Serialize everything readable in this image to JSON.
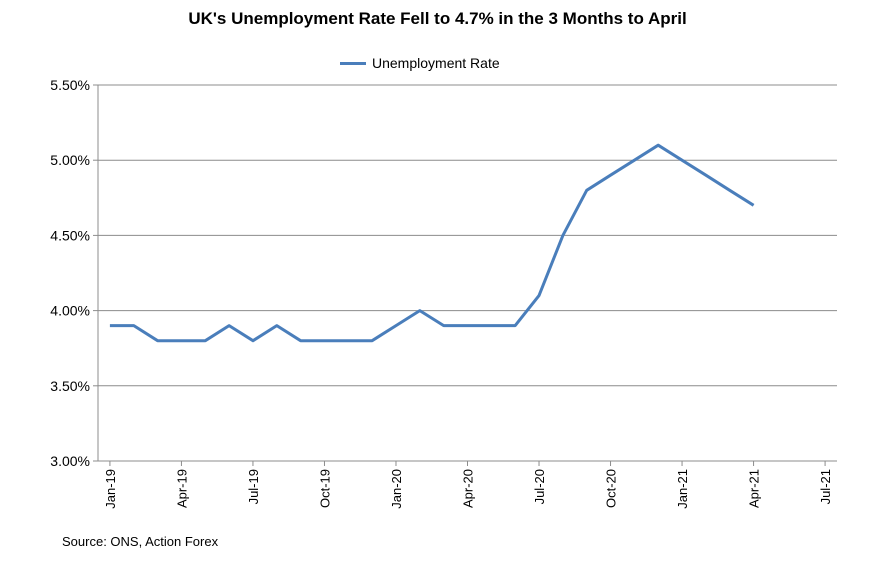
{
  "chart_data": {
    "type": "line",
    "title": "UK's Unemployment Rate Fell to 4.7% in the 3 Months to April",
    "series": [
      {
        "name": "Unemployment Rate",
        "color": "#4a7ebb",
        "x": [
          "Jan-19",
          "Feb-19",
          "Mar-19",
          "Apr-19",
          "May-19",
          "Jun-19",
          "Jul-19",
          "Aug-19",
          "Sep-19",
          "Oct-19",
          "Nov-19",
          "Dec-19",
          "Jan-20",
          "Feb-20",
          "Mar-20",
          "Apr-20",
          "May-20",
          "Jun-20",
          "Jul-20",
          "Aug-20",
          "Sep-20",
          "Oct-20",
          "Nov-20",
          "Dec-20",
          "Jan-21",
          "Feb-21",
          "Mar-21",
          "Apr-21"
        ],
        "values": [
          3.9,
          3.9,
          3.8,
          3.8,
          3.8,
          3.9,
          3.8,
          3.9,
          3.8,
          3.8,
          3.8,
          3.8,
          3.9,
          4.0,
          3.9,
          3.9,
          3.9,
          3.9,
          4.1,
          4.5,
          4.8,
          4.9,
          5.0,
          5.1,
          5.0,
          4.9,
          4.8,
          4.7
        ]
      }
    ],
    "x_ticks": [
      "Jan-19",
      "Apr-19",
      "Jul-19",
      "Oct-19",
      "Jan-20",
      "Apr-20",
      "Jul-20",
      "Oct-20",
      "Jan-21",
      "Apr-21",
      "Jul-21"
    ],
    "x_range_months": 31,
    "y_ticks": [
      "3.00%",
      "3.50%",
      "4.00%",
      "4.50%",
      "5.00%",
      "5.50%"
    ],
    "ylim": [
      3.0,
      5.5
    ],
    "y_tick_step": 0.5,
    "grid": "horizontal",
    "legend_position": "top",
    "source": "Source: ONS, Action Forex"
  }
}
